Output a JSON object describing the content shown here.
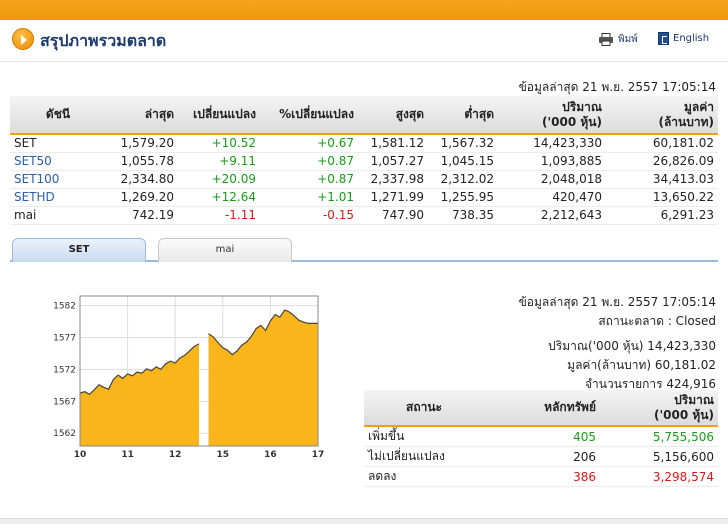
{
  "header": {
    "title": "สรุปภาพรวมตลาด",
    "print_label": "พิมพ์",
    "english_label": "English",
    "print_icon": "printer-icon",
    "english_icon": "flag-icon",
    "brand_color": "#f0960a"
  },
  "index_table": {
    "updated": "ข้อมูลล่าสุด 21 พ.ย. 2557 17:05:14",
    "columns": [
      "ดัชนี",
      "ล่าสุด",
      "เปลี่ยนแปลง",
      "%เปลี่ยนแปลง",
      "สูงสุด",
      "ต่ำสุด",
      "ปริมาณ\n('000 หุ้น)",
      "มูลค่า\n(ล้านบาท)"
    ],
    "rows": [
      {
        "name": "SET",
        "last": "1,579.20",
        "change": "+10.52",
        "pct": "+0.67",
        "high": "1,581.12",
        "low": "1,567.32",
        "volume": "14,423,330",
        "value": "60,181.02",
        "dir": "pos",
        "link": false
      },
      {
        "name": "SET50",
        "last": "1,055.78",
        "change": "+9.11",
        "pct": "+0.87",
        "high": "1,057.27",
        "low": "1,045.15",
        "volume": "1,093,885",
        "value": "26,826.09",
        "dir": "pos",
        "link": true
      },
      {
        "name": "SET100",
        "last": "2,334.80",
        "change": "+20.09",
        "pct": "+0.87",
        "high": "2,337.98",
        "low": "2,312.02",
        "volume": "2,048,018",
        "value": "34,413.03",
        "dir": "pos",
        "link": true
      },
      {
        "name": "SETHD",
        "last": "1,269.20",
        "change": "+12.64",
        "pct": "+1.01",
        "high": "1,271.99",
        "low": "1,255.95",
        "volume": "420,470",
        "value": "13,650.22",
        "dir": "pos",
        "link": true
      },
      {
        "name": "mai",
        "last": "742.19",
        "change": "-1.11",
        "pct": "-0.15",
        "high": "747.90",
        "low": "738.35",
        "volume": "2,212,643",
        "value": "6,291.23",
        "dir": "neg",
        "link": false
      }
    ]
  },
  "tabs": [
    {
      "label": "SET",
      "active": true
    },
    {
      "label": "mai",
      "active": false
    }
  ],
  "chart_data": {
    "type": "area",
    "x_ticks": [
      "10",
      "11",
      "12",
      "15",
      "16",
      "17"
    ],
    "y_ticks": [
      1582,
      1577,
      1572,
      1567,
      1562
    ],
    "ylim": [
      1560,
      1583.5
    ],
    "grid": true,
    "fill_color": "#f9b51a",
    "session1_x": [
      10,
      10.1,
      10.2,
      10.3,
      10.4,
      10.5,
      10.6,
      10.7,
      10.8,
      10.9,
      11.0,
      11.1,
      11.2,
      11.3,
      11.4,
      11.5,
      11.6,
      11.7,
      11.8,
      11.9,
      12.0,
      12.1,
      12.2,
      12.3,
      12.4,
      12.5
    ],
    "session1_y": [
      1568.3,
      1568.5,
      1568.1,
      1568.8,
      1569.6,
      1569.2,
      1568.9,
      1570.4,
      1571.1,
      1570.6,
      1571.3,
      1571.0,
      1571.6,
      1571.4,
      1572.1,
      1571.8,
      1572.4,
      1572.0,
      1572.9,
      1573.3,
      1573.0,
      1573.8,
      1574.2,
      1574.9,
      1575.6,
      1576.0
    ],
    "session2_x": [
      14.7,
      14.8,
      14.9,
      15.0,
      15.1,
      15.2,
      15.3,
      15.4,
      15.5,
      15.6,
      15.7,
      15.8,
      15.9,
      16.0,
      16.1,
      16.2,
      16.3,
      16.4,
      16.5,
      16.6,
      16.7,
      16.8,
      16.9,
      17.0
    ],
    "session2_y": [
      1577.6,
      1577.1,
      1576.2,
      1575.4,
      1575.0,
      1574.3,
      1574.9,
      1575.8,
      1576.3,
      1577.2,
      1578.4,
      1578.9,
      1578.1,
      1579.6,
      1580.6,
      1580.2,
      1581.3,
      1581.0,
      1580.4,
      1579.7,
      1579.4,
      1579.2,
      1579.2,
      1579.2
    ]
  },
  "market_stats": {
    "updated": "ข้อมูลล่าสุด 21 พ.ย. 2557 17:05:14",
    "status": "สถานะตลาด : Closed",
    "volume": "ปริมาณ('000 หุ้น) 14,423,330",
    "value": "มูลค่า(ล้านบาท) 60,181.02",
    "deals": "จำนวนรายการ 424,916"
  },
  "status_table": {
    "columns": [
      "สถานะ",
      "หลักทรัพย์",
      "ปริมาณ\n('000 หุ้น)"
    ],
    "rows": [
      {
        "label": "เพิ่มขึ้น",
        "count": "405",
        "volume": "5,755,506",
        "dir": "pos"
      },
      {
        "label": "ไม่เปลี่ยนแปลง",
        "count": "206",
        "volume": "5,156,600",
        "dir": ""
      },
      {
        "label": "ลดลง",
        "count": "386",
        "volume": "3,298,574",
        "dir": "neg"
      }
    ]
  }
}
